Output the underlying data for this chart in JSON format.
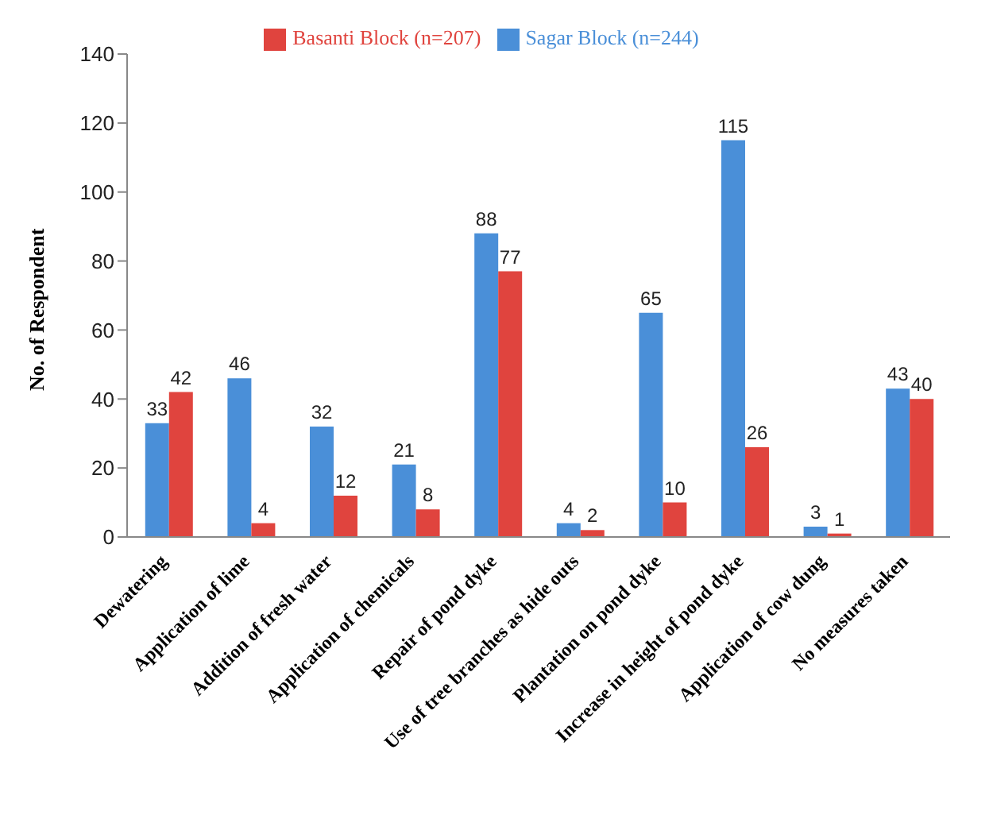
{
  "chart_data": {
    "type": "bar",
    "ylabel": "No. of Respondent",
    "categories": [
      "Dewatering",
      "Application of lime",
      "Addition of fresh water",
      "Application of chemicals",
      "Repair of pond dyke",
      "Use of tree branches as hide outs",
      "Plantation on pond dyke",
      "Increase in height of pond dyke",
      "Application of cow dung",
      "No measures taken"
    ],
    "series": [
      {
        "name": "Sagar Block (n=244)",
        "color": "#4a8fd8",
        "values": [
          33,
          46,
          32,
          21,
          88,
          4,
          65,
          115,
          3,
          43
        ]
      },
      {
        "name": "Basanti Block  (n=207)",
        "color": "#e0443e",
        "values": [
          42,
          4,
          12,
          8,
          77,
          2,
          10,
          26,
          1,
          40
        ]
      }
    ],
    "ylim": [
      0,
      140
    ],
    "yticks": [
      0,
      20,
      40,
      60,
      80,
      100,
      120,
      140
    ],
    "grid": false,
    "legend": "top",
    "data_labels": true
  }
}
